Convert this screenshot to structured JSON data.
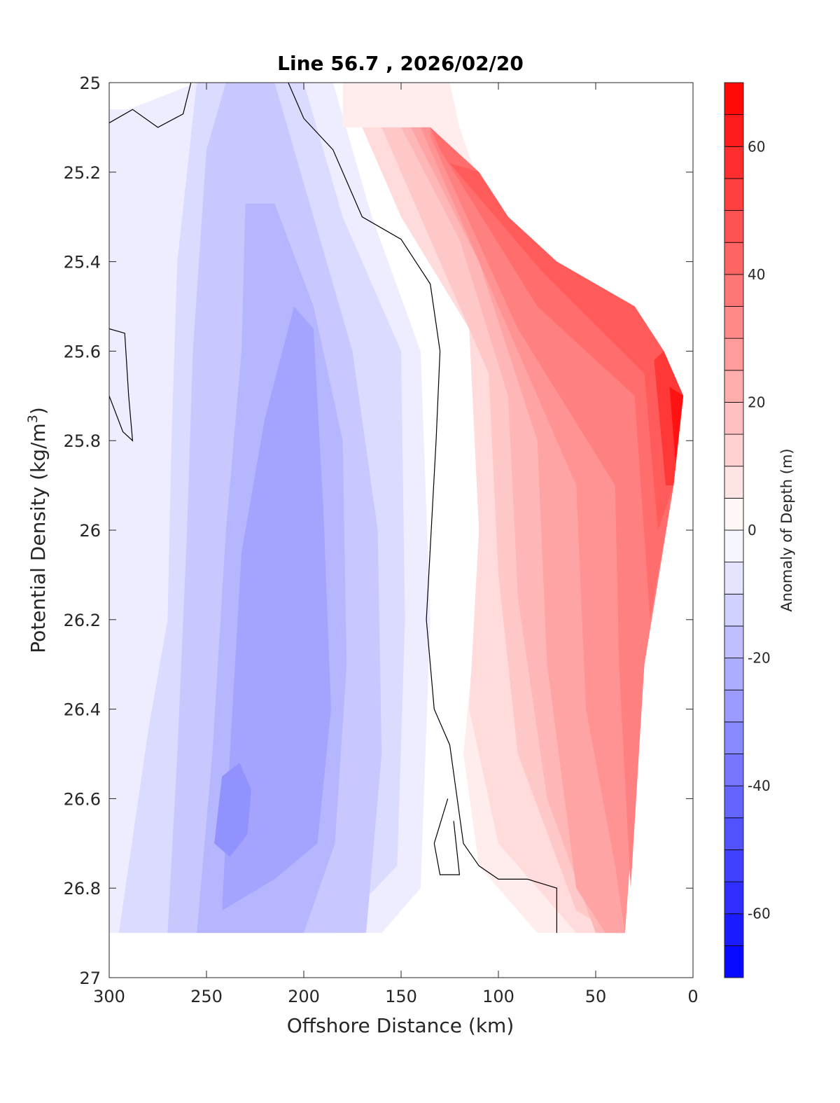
{
  "chart_data": {
    "type": "contourf",
    "title": "Line 56.7 , 2026/02/20",
    "xlabel": "Offshore Distance (km)",
    "ylabel_main": "Potential Density (kg/m",
    "ylabel_sup": "3",
    "ylabel_close": ")",
    "xlim": [
      300,
      0
    ],
    "ylim": [
      25,
      27
    ],
    "x_reversed": true,
    "y_reversed": true,
    "xticks": [
      300,
      250,
      200,
      150,
      100,
      50,
      0
    ],
    "xtick_labels": [
      "300",
      "250",
      "200",
      "150",
      "100",
      "50",
      "0"
    ],
    "yticks": [
      25,
      25.2,
      25.4,
      25.6,
      25.8,
      26,
      26.2,
      26.4,
      26.6,
      26.8,
      27
    ],
    "ytick_labels": [
      "25",
      "25.2",
      "25.4",
      "25.6",
      "25.8",
      "26",
      "26.2",
      "26.4",
      "26.6",
      "26.8",
      "27"
    ],
    "colorbar": {
      "label": "Anomaly of Depth (m)",
      "range": [
        -70,
        70
      ],
      "level_step": 5,
      "ticks": [
        60,
        40,
        20,
        0,
        -20,
        -40,
        -60
      ],
      "tick_labels": [
        "60",
        "40",
        "20",
        "0",
        "-20",
        "-40",
        "-60"
      ],
      "low_color": "#0000ff",
      "mid_color": "#ffffff",
      "high_color": "#ff0000"
    },
    "data_extent": {
      "left_x": 300,
      "bottom_sigma": 26.9,
      "right_boundary": [
        {
          "sigma": 25.0,
          "x": 180
        },
        {
          "sigma": 25.1,
          "x": 135
        },
        {
          "sigma": 25.2,
          "x": 110
        },
        {
          "sigma": 25.3,
          "x": 95
        },
        {
          "sigma": 25.4,
          "x": 70
        },
        {
          "sigma": 25.5,
          "x": 30
        },
        {
          "sigma": 25.6,
          "x": 15
        },
        {
          "sigma": 25.7,
          "x": 5
        },
        {
          "sigma": 25.9,
          "x": 10
        },
        {
          "sigma": 26.3,
          "x": 25
        },
        {
          "sigma": 26.9,
          "x": 35
        }
      ]
    },
    "contour_bands": [
      {
        "level": -5,
        "region": [
          [
            300,
            25.06
          ],
          [
            290,
            25.06
          ],
          [
            255,
            25.0
          ],
          [
            185,
            25.0
          ],
          [
            165,
            25.3
          ],
          [
            140,
            25.6
          ],
          [
            135,
            26.2
          ],
          [
            140,
            26.8
          ],
          [
            160,
            26.9
          ],
          [
            300,
            26.9
          ]
        ]
      },
      {
        "level": -10,
        "region": [
          [
            295,
            26.9
          ],
          [
            280,
            26.45
          ],
          [
            270,
            26.2
          ],
          [
            268,
            25.8
          ],
          [
            265,
            25.4
          ],
          [
            255,
            25.0
          ],
          [
            200,
            25.0
          ],
          [
            180,
            25.3
          ],
          [
            150,
            25.6
          ],
          [
            148,
            26.2
          ],
          [
            152,
            26.75
          ],
          [
            185,
            26.9
          ]
        ]
      },
      {
        "level": -15,
        "region": [
          [
            270,
            26.9
          ],
          [
            265,
            26.5
          ],
          [
            260,
            26.0
          ],
          [
            257,
            25.6
          ],
          [
            250,
            25.15
          ],
          [
            240,
            25.0
          ],
          [
            215,
            25.0
          ],
          [
            195,
            25.3
          ],
          [
            175,
            25.6
          ],
          [
            162,
            26.0
          ],
          [
            160,
            26.5
          ],
          [
            168,
            26.9
          ]
        ]
      },
      {
        "level": -20,
        "region": [
          [
            255,
            26.9
          ],
          [
            247,
            26.5
          ],
          [
            240,
            26.0
          ],
          [
            232,
            25.6
          ],
          [
            230,
            25.27
          ],
          [
            215,
            25.27
          ],
          [
            195,
            25.5
          ],
          [
            180,
            25.8
          ],
          [
            178,
            26.3
          ],
          [
            184,
            26.7
          ],
          [
            200,
            26.9
          ]
        ]
      },
      {
        "level": -25,
        "region": [
          [
            242,
            26.85
          ],
          [
            238,
            26.5
          ],
          [
            232,
            26.05
          ],
          [
            220,
            25.75
          ],
          [
            205,
            25.5
          ],
          [
            195,
            25.55
          ],
          [
            190,
            25.95
          ],
          [
            186,
            26.4
          ],
          [
            193,
            26.7
          ],
          [
            215,
            26.78
          ]
        ]
      },
      {
        "level": -30,
        "region": [
          [
            246,
            26.7
          ],
          [
            242,
            26.55
          ],
          [
            233,
            26.52
          ],
          [
            227,
            26.58
          ],
          [
            229,
            26.68
          ],
          [
            238,
            26.73
          ]
        ]
      },
      {
        "level": 5,
        "region": [
          [
            125,
            25.0
          ],
          [
            120,
            25.1
          ],
          [
            108,
            25.25
          ],
          [
            100,
            25.5
          ],
          [
            107,
            26.0
          ],
          [
            118,
            26.5
          ],
          [
            110,
            26.75
          ],
          [
            80,
            26.9
          ],
          [
            35,
            26.9
          ],
          [
            25,
            26.3
          ],
          [
            10,
            25.9
          ],
          [
            5,
            25.7
          ],
          [
            15,
            25.6
          ],
          [
            30,
            25.5
          ],
          [
            70,
            25.4
          ],
          [
            95,
            25.3
          ],
          [
            110,
            25.2
          ],
          [
            135,
            25.1
          ],
          [
            180,
            25.1
          ],
          [
            180,
            25.0
          ]
        ]
      },
      {
        "level": 10,
        "region": [
          [
            170,
            25.1
          ],
          [
            150,
            25.3
          ],
          [
            115,
            25.55
          ],
          [
            110,
            26.0
          ],
          [
            115,
            26.4
          ],
          [
            100,
            26.7
          ],
          [
            60,
            26.9
          ],
          [
            35,
            26.9
          ],
          [
            25,
            26.3
          ],
          [
            10,
            25.9
          ],
          [
            5,
            25.7
          ],
          [
            15,
            25.6
          ],
          [
            30,
            25.5
          ],
          [
            70,
            25.4
          ],
          [
            95,
            25.3
          ],
          [
            110,
            25.2
          ],
          [
            135,
            25.1
          ]
        ]
      },
      {
        "level": 15,
        "region": [
          [
            160,
            25.1
          ],
          [
            135,
            25.35
          ],
          [
            105,
            25.65
          ],
          [
            100,
            26.1
          ],
          [
            90,
            26.5
          ],
          [
            60,
            26.85
          ],
          [
            40,
            26.9
          ],
          [
            35,
            26.9
          ],
          [
            25,
            26.3
          ],
          [
            10,
            25.9
          ],
          [
            5,
            25.7
          ],
          [
            15,
            25.6
          ],
          [
            30,
            25.5
          ],
          [
            70,
            25.4
          ],
          [
            95,
            25.3
          ],
          [
            110,
            25.2
          ],
          [
            135,
            25.1
          ]
        ]
      },
      {
        "level": 20,
        "region": [
          [
            150,
            25.1
          ],
          [
            120,
            25.35
          ],
          [
            95,
            25.7
          ],
          [
            90,
            26.15
          ],
          [
            75,
            26.6
          ],
          [
            50,
            26.9
          ],
          [
            35,
            26.9
          ],
          [
            25,
            26.3
          ],
          [
            10,
            25.9
          ],
          [
            5,
            25.7
          ],
          [
            15,
            25.6
          ],
          [
            30,
            25.5
          ],
          [
            70,
            25.4
          ],
          [
            95,
            25.3
          ],
          [
            110,
            25.2
          ],
          [
            135,
            25.1
          ]
        ]
      },
      {
        "level": 25,
        "region": [
          [
            145,
            25.1
          ],
          [
            110,
            25.4
          ],
          [
            80,
            25.8
          ],
          [
            75,
            26.3
          ],
          [
            60,
            26.8
          ],
          [
            45,
            26.9
          ],
          [
            35,
            26.9
          ],
          [
            25,
            26.3
          ],
          [
            10,
            25.9
          ],
          [
            5,
            25.7
          ],
          [
            15,
            25.6
          ],
          [
            30,
            25.5
          ],
          [
            70,
            25.4
          ],
          [
            95,
            25.3
          ],
          [
            110,
            25.2
          ],
          [
            135,
            25.1
          ]
        ]
      },
      {
        "level": 30,
        "region": [
          [
            140,
            25.1
          ],
          [
            100,
            25.5
          ],
          [
            60,
            25.9
          ],
          [
            55,
            26.4
          ],
          [
            40,
            26.75
          ],
          [
            35,
            26.9
          ],
          [
            25,
            26.3
          ],
          [
            10,
            25.9
          ],
          [
            5,
            25.7
          ],
          [
            15,
            25.6
          ],
          [
            30,
            25.5
          ],
          [
            70,
            25.4
          ],
          [
            95,
            25.3
          ],
          [
            110,
            25.2
          ],
          [
            135,
            25.1
          ]
        ]
      },
      {
        "level": 35,
        "region": [
          [
            135,
            25.12
          ],
          [
            90,
            25.55
          ],
          [
            40,
            25.9
          ],
          [
            38,
            26.3
          ],
          [
            32,
            26.8
          ],
          [
            25,
            26.3
          ],
          [
            10,
            25.9
          ],
          [
            5,
            25.7
          ],
          [
            15,
            25.6
          ],
          [
            30,
            25.5
          ],
          [
            70,
            25.4
          ],
          [
            95,
            25.3
          ],
          [
            110,
            25.2
          ],
          [
            135,
            25.1
          ]
        ]
      },
      {
        "level": 40,
        "region": [
          [
            130,
            25.15
          ],
          [
            80,
            25.5
          ],
          [
            30,
            25.7
          ],
          [
            22,
            26.2
          ],
          [
            10,
            25.9
          ],
          [
            5,
            25.7
          ],
          [
            15,
            25.6
          ],
          [
            30,
            25.5
          ],
          [
            70,
            25.4
          ],
          [
            95,
            25.3
          ],
          [
            110,
            25.2
          ],
          [
            135,
            25.1
          ]
        ]
      },
      {
        "level": 45,
        "region": [
          [
            125,
            25.18
          ],
          [
            78,
            25.42
          ],
          [
            25,
            25.65
          ],
          [
            18,
            26.0
          ],
          [
            10,
            25.9
          ],
          [
            5,
            25.7
          ],
          [
            15,
            25.6
          ],
          [
            30,
            25.5
          ],
          [
            70,
            25.4
          ],
          [
            95,
            25.3
          ],
          [
            110,
            25.2
          ]
        ]
      },
      {
        "level": 55,
        "region": [
          [
            20,
            25.62
          ],
          [
            14,
            25.9
          ],
          [
            10,
            25.9
          ],
          [
            5,
            25.7
          ],
          [
            15,
            25.6
          ]
        ]
      },
      {
        "level": 65,
        "region": [
          [
            12,
            25.68
          ],
          [
            9,
            25.85
          ],
          [
            5,
            25.7
          ]
        ]
      }
    ],
    "zero_contours": [
      [
        [
          300,
          25.09
        ],
        [
          288,
          25.06
        ],
        [
          275,
          25.1
        ],
        [
          262,
          25.07
        ],
        [
          258,
          25.0
        ]
      ],
      [
        [
          208,
          25.0
        ],
        [
          200,
          25.08
        ],
        [
          185,
          25.15
        ],
        [
          170,
          25.3
        ],
        [
          150,
          25.35
        ],
        [
          135,
          25.45
        ],
        [
          130,
          25.6
        ],
        [
          132,
          25.8
        ],
        [
          137,
          26.2
        ],
        [
          133,
          26.4
        ],
        [
          125,
          26.48
        ],
        [
          118,
          26.7
        ],
        [
          110,
          26.75
        ],
        [
          100,
          26.78
        ],
        [
          85,
          26.78
        ],
        [
          70,
          26.8
        ],
        [
          70,
          26.9
        ]
      ],
      [
        [
          300,
          25.55
        ],
        [
          292,
          25.56
        ],
        [
          290,
          25.7
        ],
        [
          288,
          25.8
        ],
        [
          293,
          25.78
        ],
        [
          300,
          25.7
        ]
      ],
      [
        [
          126,
          26.6
        ],
        [
          133,
          26.7
        ],
        [
          130,
          26.77
        ],
        [
          120,
          26.77
        ],
        [
          123,
          26.65
        ]
      ]
    ]
  }
}
